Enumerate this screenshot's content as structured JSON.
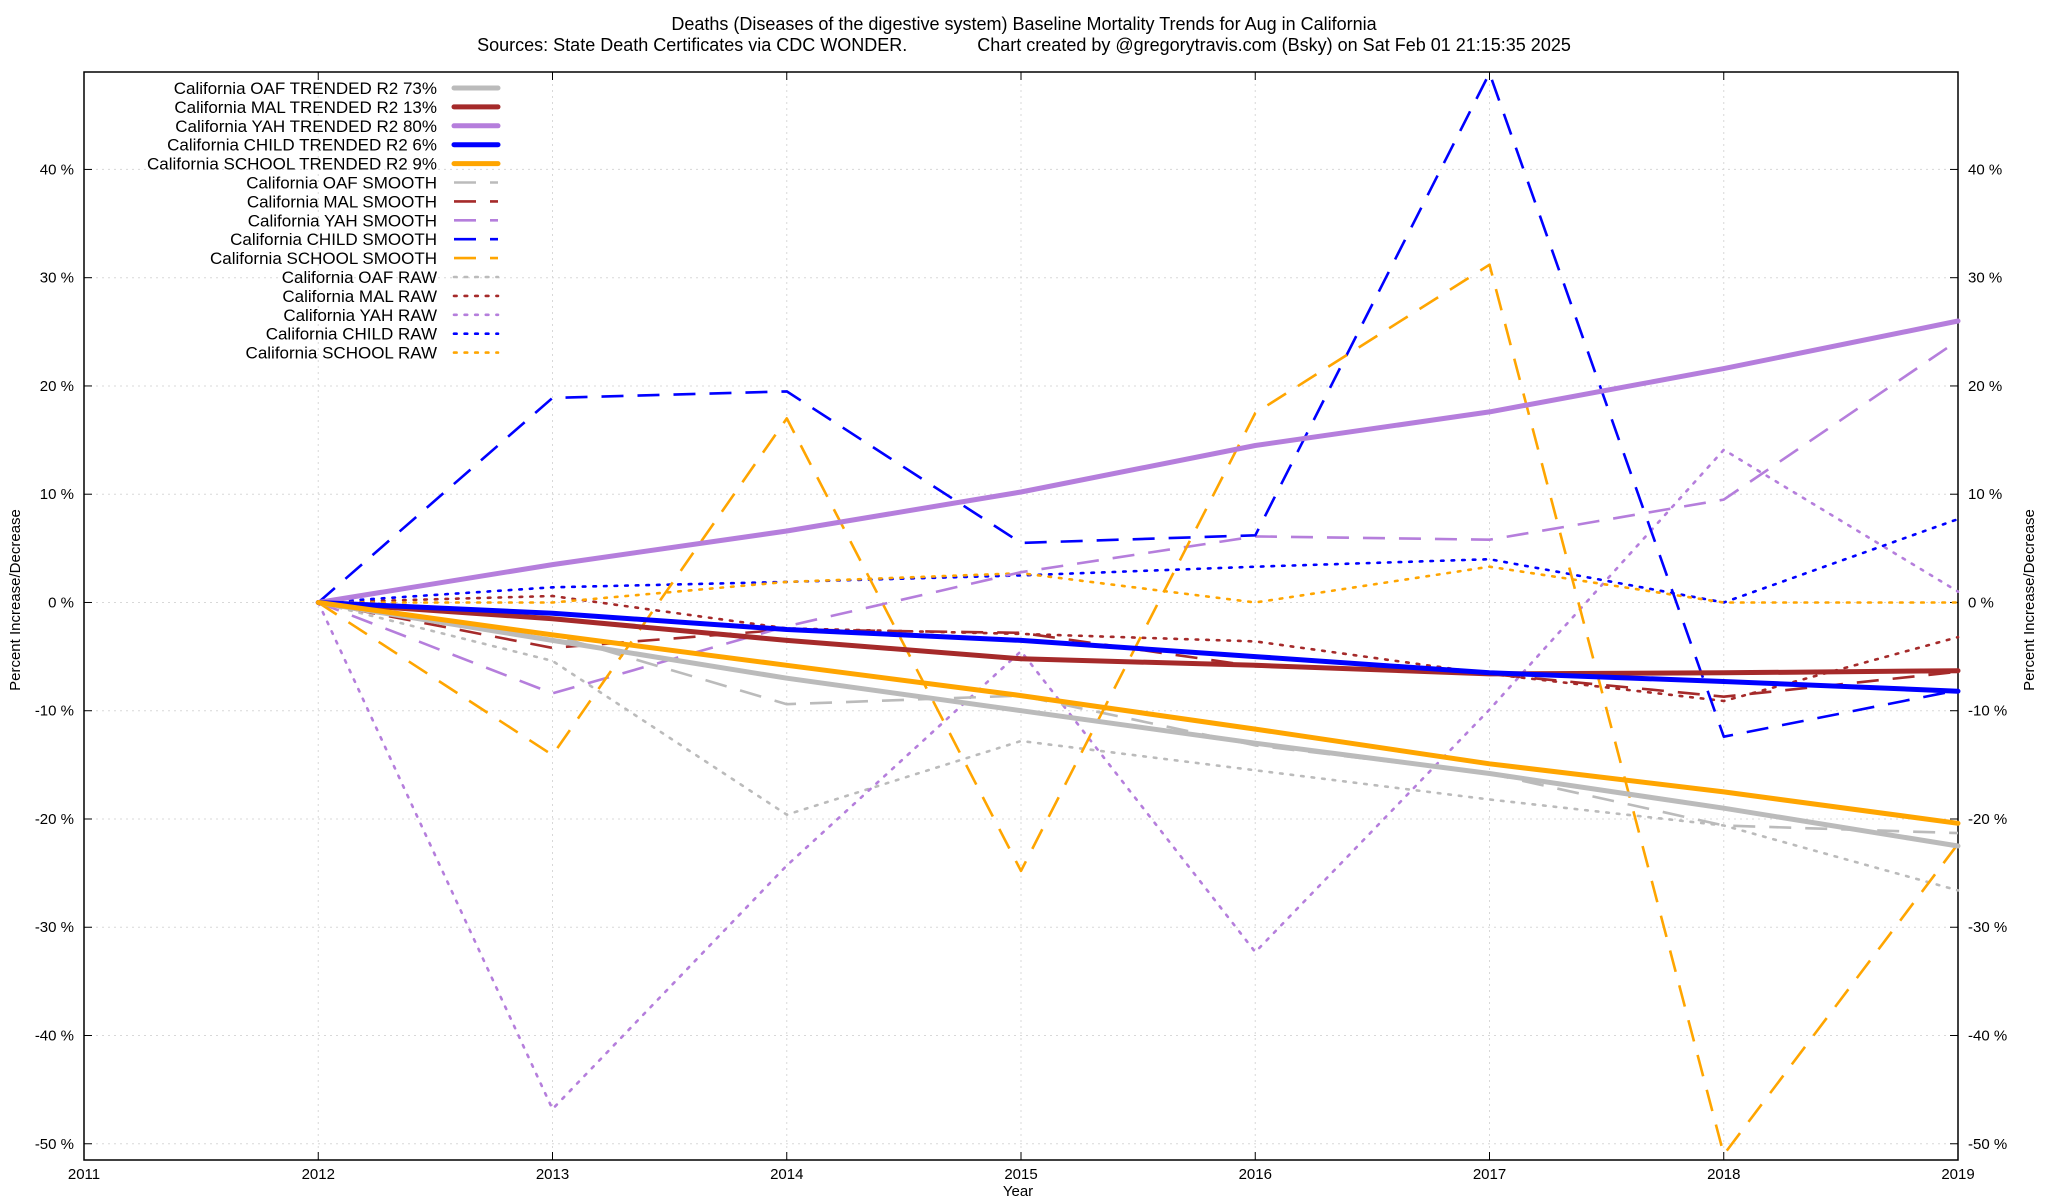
{
  "chart_data": {
    "type": "line",
    "title": "Deaths (Diseases of the digestive system)  Baseline Mortality Trends for Aug in California",
    "subtitle": "Sources: State Death Certificates via CDC WONDER.              Chart created by @gregorytravis.com (Bsky) on Sat Feb 01 21:15:35 2025",
    "xlabel": "Year",
    "ylabel": "Percent Increase/Decrease",
    "y2label": "Percent Increase/Decrease",
    "xlim": [
      2011,
      2019
    ],
    "ylim": [
      -51.5,
      49
    ],
    "x_ticks": [
      2011,
      2012,
      2013,
      2014,
      2015,
      2016,
      2017,
      2018,
      2019
    ],
    "x_tick_labels": [
      "2011",
      "2012",
      "2013",
      "2014",
      "2015",
      "2016",
      "2017",
      "2018",
      "2019"
    ],
    "y_ticks": [
      -50,
      -40,
      -30,
      -20,
      -10,
      0,
      10,
      20,
      30,
      40
    ],
    "y_tick_labels": [
      "-50 %",
      "-40 %",
      "-30 %",
      "-20 %",
      "-10 %",
      "0 %",
      "10 %",
      "20 %",
      "30 %",
      "40 %"
    ],
    "grid": true,
    "legend_position": "top-left",
    "x": [
      2012,
      2013,
      2014,
      2015,
      2016,
      2017,
      2018,
      2019
    ],
    "series": [
      {
        "name": "California OAF TRENDED R2  73%",
        "color": "#bbbbbb",
        "style": "solid",
        "values": [
          0,
          -3.5,
          -7,
          -10,
          -13,
          -15.8,
          -19,
          -22.5
        ]
      },
      {
        "name": "California MAL TRENDED R2  13%",
        "color": "#a52a2a",
        "style": "solid",
        "values": [
          0,
          -1.5,
          -3.5,
          -5.2,
          -5.8,
          -6.6,
          -6.5,
          -6.3
        ]
      },
      {
        "name": "California YAH TRENDED R2  80%",
        "color": "#b57edc",
        "style": "solid",
        "values": [
          0,
          3.5,
          6.6,
          10.2,
          14.5,
          17.6,
          21.6,
          26
        ]
      },
      {
        "name": "California CHILD TRENDED R2   6%",
        "color": "#0000ff",
        "style": "solid",
        "values": [
          0,
          -1,
          -2.5,
          -3.5,
          -5,
          -6.5,
          -7.3,
          -8.2
        ]
      },
      {
        "name": "California SCHOOL TRENDED R2   9%",
        "color": "#ffa500",
        "style": "solid",
        "values": [
          0,
          -3,
          -5.8,
          -8.6,
          -11.7,
          -14.9,
          -17.5,
          -20.4
        ]
      },
      {
        "name": "California OAF SMOOTH",
        "color": "#bbbbbb",
        "style": "dashed",
        "values": [
          0,
          -3,
          -9.4,
          -8.6,
          -13.2,
          -15.8,
          -20.6,
          -21.3
        ]
      },
      {
        "name": "California MAL SMOOTH",
        "color": "#a52a2a",
        "style": "dashed",
        "values": [
          0,
          -4.2,
          -2.5,
          -2.8,
          -5.9,
          -6.6,
          -8.7,
          -6.4
        ]
      },
      {
        "name": "California YAH SMOOTH",
        "color": "#b57edc",
        "style": "dashed",
        "values": [
          0,
          -8.4,
          -2.2,
          2.8,
          6.1,
          5.8,
          9.5,
          24.2
        ]
      },
      {
        "name": "California CHILD SMOOTH",
        "color": "#0000ff",
        "style": "dashed",
        "values": [
          0,
          18.9,
          19.5,
          5.5,
          6.2,
          48.9,
          -12.4,
          -8.1
        ]
      },
      {
        "name": "California SCHOOL SMOOTH",
        "color": "#ffa500",
        "style": "dashed",
        "values": [
          0,
          -14.1,
          17,
          -24.8,
          17.5,
          31.2,
          -51,
          -22.3
        ]
      },
      {
        "name": "California OAF RAW",
        "color": "#bbbbbb",
        "style": "dotted",
        "values": [
          0,
          -5.4,
          -19.6,
          -12.8,
          -15.5,
          -18.2,
          -20.6,
          -26.6
        ]
      },
      {
        "name": "California MAL RAW",
        "color": "#a52a2a",
        "style": "dotted",
        "values": [
          0,
          0.6,
          -2.4,
          -2.9,
          -3.6,
          -6.6,
          -9.1,
          -3.2
        ]
      },
      {
        "name": "California YAH RAW",
        "color": "#b57edc",
        "style": "dotted",
        "values": [
          0,
          -46.8,
          -24.3,
          -4.5,
          -32.3,
          -9.9,
          14.1,
          1
        ]
      },
      {
        "name": "California CHILD RAW",
        "color": "#0000ff",
        "style": "dotted",
        "values": [
          0,
          1.4,
          1.9,
          2.5,
          3.3,
          4,
          0,
          7.7
        ]
      },
      {
        "name": "California SCHOOL RAW",
        "color": "#ffa500",
        "style": "dotted",
        "values": [
          0,
          0,
          1.9,
          2.7,
          0,
          3.3,
          0,
          0
        ]
      }
    ]
  }
}
